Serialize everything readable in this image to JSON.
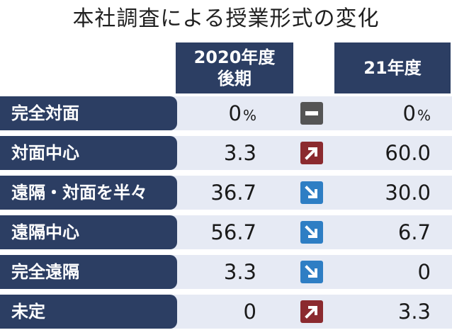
{
  "title": "本社調査による授業形式の変化",
  "headers": {
    "col_a_line1": "2020年度",
    "col_a_line2": "後期",
    "col_b": "21年度"
  },
  "colors": {
    "header_bg": "#2c3e63",
    "row_bg": "#e6eaf4",
    "up_icon": "#8b2a2f",
    "down_icon": "#2e7ec4",
    "same_icon": "#555555"
  },
  "chart_data": {
    "type": "table",
    "columns": [
      "2020年度後期",
      "21年度"
    ],
    "rows": [
      {
        "label": "完全対面",
        "a": "0",
        "a_unit": "%",
        "b": "0",
        "b_unit": "%",
        "trend": "same",
        "icon": "minus-icon"
      },
      {
        "label": "対面中心",
        "a": "3.3",
        "a_unit": "",
        "b": "60.0",
        "b_unit": "",
        "trend": "up",
        "icon": "arrow-up-right-icon"
      },
      {
        "label": "遠隔・対面を半々",
        "a": "36.7",
        "a_unit": "",
        "b": "30.0",
        "b_unit": "",
        "trend": "down",
        "icon": "arrow-down-right-icon"
      },
      {
        "label": "遠隔中心",
        "a": "56.7",
        "a_unit": "",
        "b": "6.7",
        "b_unit": "",
        "trend": "down",
        "icon": "arrow-down-right-icon"
      },
      {
        "label": "完全遠隔",
        "a": "3.3",
        "a_unit": "",
        "b": "0",
        "b_unit": "",
        "trend": "down",
        "icon": "arrow-down-right-icon"
      },
      {
        "label": "未定",
        "a": "0",
        "a_unit": "",
        "b": "3.3",
        "b_unit": "",
        "trend": "up",
        "icon": "arrow-up-right-icon"
      }
    ]
  }
}
